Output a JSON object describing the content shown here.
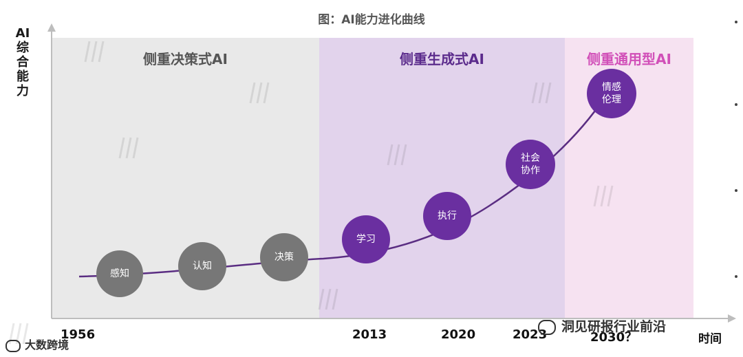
{
  "title": "图：AI能力进化曲线",
  "y_axis_label": [
    "AI",
    "综",
    "合",
    "能",
    "力"
  ],
  "x_axis_label": "时间",
  "regions": [
    {
      "label": "侧重决策式AI",
      "color": "#555555"
    },
    {
      "label": "侧重生成式AI",
      "color": "#5b2b8c"
    },
    {
      "label": "侧重通用型AI",
      "color": "#d14fb8"
    }
  ],
  "nodes": [
    {
      "label": "感知",
      "color": "#777777"
    },
    {
      "label": "认知",
      "color": "#777777"
    },
    {
      "label": "决策",
      "color": "#777777"
    },
    {
      "label": "学习",
      "color": "#6a2fa0"
    },
    {
      "label": "执行",
      "color": "#6a2fa0"
    },
    {
      "label": "社会协作",
      "line1": "社会",
      "line2": "协作",
      "color": "#6a2fa0"
    },
    {
      "label": "情感伦理",
      "line1": "情感",
      "line2": "伦理",
      "color": "#6a2fa0"
    }
  ],
  "years": [
    "1956",
    "2013",
    "2020",
    "2023",
    "2030？"
  ],
  "watermarks": {
    "left_footer": "大数跨境",
    "right_footer": "洞见研报行业前沿"
  },
  "colors": {
    "region1_bg": "#e9e9e9",
    "region2_bg": "#e2d3ec",
    "region3_bg": "#f6e2f1",
    "curve": "#5a2d82",
    "axis": "#bdbdbd"
  }
}
